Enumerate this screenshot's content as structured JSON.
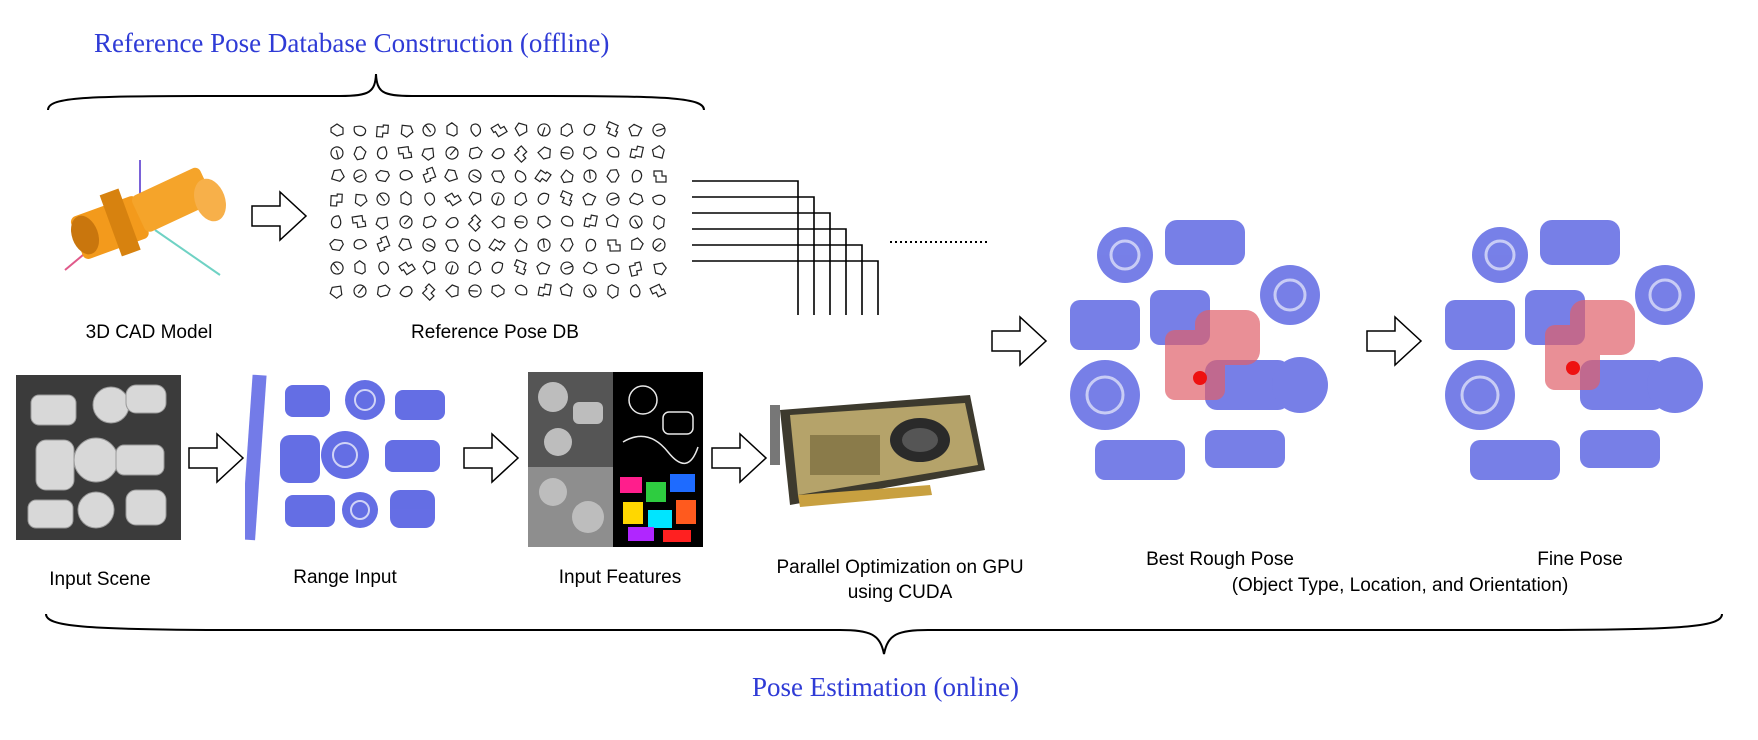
{
  "sections": {
    "offline_title": "Reference Pose Database Construction (offline)",
    "online_title": "Pose Estimation (online)"
  },
  "captions": {
    "cad_model": "3D CAD Model",
    "reference_db": "Reference Pose DB",
    "input_scene": "Input Scene",
    "range_input": "Range Input",
    "input_features": "Input Features",
    "gpu": "Parallel Optimization on GPU using CUDA",
    "best_rough_pose": "Best Rough Pose",
    "fine_pose": "Fine Pose",
    "pose_detail": "(Object Type, Location, and Orientation)"
  },
  "images": {
    "cad_model": "orange pipe elbow 3D model",
    "reference_db": "grid of pose silhouettes",
    "input_scene": "grayscale scene of cluttered parts",
    "range_input": "blue point cloud",
    "input_features": "depth, edge, blur and segmentation maps",
    "gpu": "graphics card",
    "best_rough_pose": "point cloud with red overlaid pose",
    "fine_pose": "point cloud with refined red overlaid pose"
  },
  "colors": {
    "title_blue": "#2f3bd6",
    "cad_orange": "#f39a1c",
    "point_blue": "#4a55e0",
    "pose_red": "#e0606a"
  }
}
